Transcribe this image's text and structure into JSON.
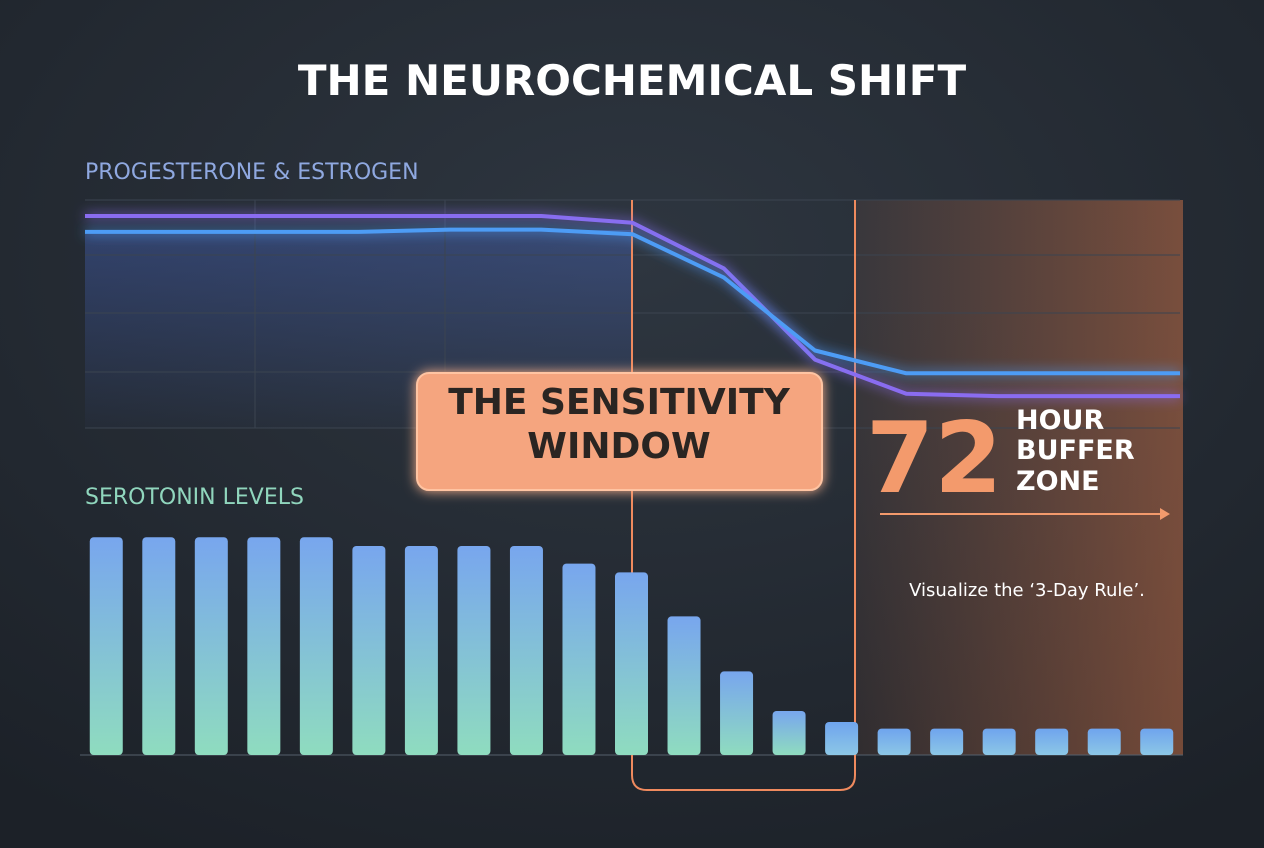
{
  "title": "THE NEUROCHEMICAL SHIFT",
  "annotations": {
    "sensitivity_window": [
      "THE SENSITIVITY",
      "WINDOW"
    ],
    "buffer_number": "72",
    "buffer_words": [
      "HOUR",
      "BUFFER",
      "ZONE"
    ],
    "note": "Visualize the ‘3-Day Rule’."
  },
  "chart_data": [
    {
      "type": "line",
      "title": "PROGESTERONE & ESTROGEN",
      "x": [
        0,
        1,
        2,
        3,
        4,
        5,
        6,
        7,
        8,
        9,
        10,
        11,
        12
      ],
      "xlim": [
        0,
        12
      ],
      "ylim": [
        0,
        100
      ],
      "series": [
        {
          "color": "#8a6cf0",
          "values": [
            93,
            93,
            93,
            93,
            93,
            93,
            90,
            70,
            30,
            15,
            14,
            14,
            14
          ]
        },
        {
          "color": "#4d9cf5",
          "values": [
            86,
            86,
            86,
            86,
            87,
            87,
            85,
            66,
            34,
            24,
            24,
            24,
            24
          ]
        }
      ]
    },
    {
      "type": "bar",
      "title": "SEROTONIN LEVELS",
      "values": [
        99,
        99,
        99,
        99,
        99,
        95,
        95,
        95,
        95,
        87,
        83,
        63,
        38,
        20,
        15,
        12,
        12,
        12,
        12,
        12,
        12
      ],
      "ylim": [
        0,
        100
      ]
    }
  ]
}
